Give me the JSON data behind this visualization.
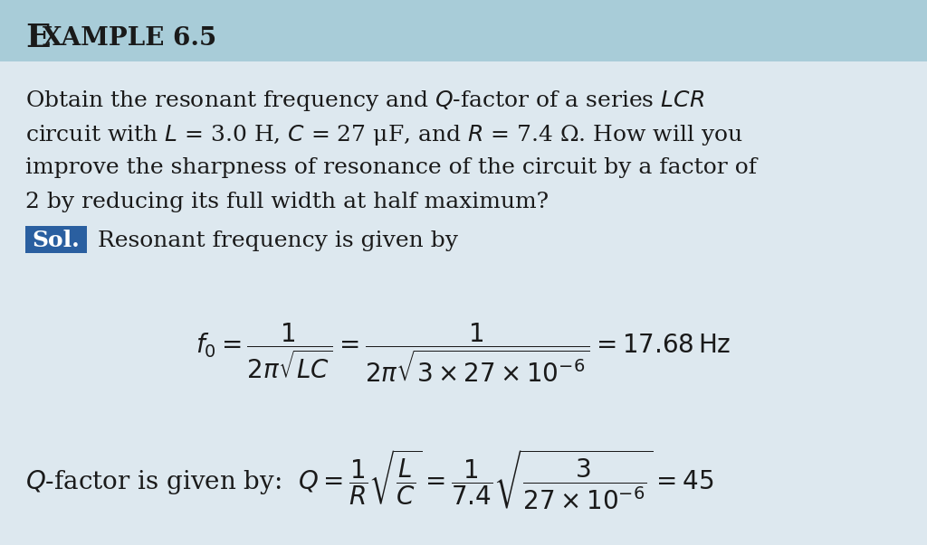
{
  "title_E": "E",
  "title_rest": "XAMPLE 6.5",
  "title_bg": "#a8ccd8",
  "body_bg_top": "#c8dce6",
  "body_bg_bottom": "#dde8ef",
  "title_fontsize_large": 26,
  "title_fontsize_small": 20,
  "body_fontsize": 18,
  "sol_bg": "#2a5fa0",
  "sol_color": "#ffffff",
  "text_color": "#1a1a1a",
  "line1": "Obtain the resonant frequency and $Q$-factor of a series $LCR$",
  "line2": "circuit with $L$ = 3.0 H, $C$ = 27 μF, and $R$ = 7.4 Ω. How will you",
  "line3": "improve the sharpness of resonance of the circuit by a factor of",
  "line4": "2 by reducing its full width at half maximum?"
}
